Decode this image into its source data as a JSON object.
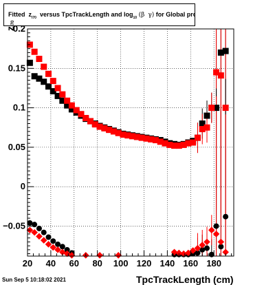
{
  "title": {
    "prefix": "Fitted",
    "var": "z",
    "var_sub": "I70",
    "middle": "versus TpcTrackLength and log",
    "log_sub": "10",
    "paren_open": "(",
    "beta": "β",
    "gamma": "γ",
    "paren_close": ")",
    "suffix": "for Global proton"
  },
  "footer": "Sun Sep  5 10:18:02 2021",
  "chart_data": {
    "type": "scatter",
    "xlabel": "TpcTrackLength (cm)",
    "ylabel": "z",
    "ylabel_sub": "I70",
    "xlim": [
      20,
      197
    ],
    "ylim": [
      -0.088,
      0.2
    ],
    "xticks": [
      20,
      40,
      60,
      80,
      100,
      120,
      140,
      160,
      180
    ],
    "yticks": [
      -0.05,
      0,
      0.05,
      0.1,
      0.15,
      0.2
    ],
    "ytick_labels": [
      "−0.05",
      "0",
      "0.05",
      "0.1",
      "0.15",
      "0.2"
    ],
    "grid": true,
    "colors": {
      "black": "#000000",
      "red": "#ff0000"
    },
    "series": [
      {
        "color": "black",
        "marker": "square",
        "x": [
          22,
          26,
          30,
          34,
          38,
          42,
          46,
          50,
          54,
          58,
          62,
          66,
          70,
          74,
          78,
          82,
          86,
          90,
          94,
          98,
          102,
          106,
          110,
          114,
          118,
          122,
          126,
          130,
          134,
          138,
          142,
          146,
          150,
          154,
          158,
          162,
          166,
          170,
          174,
          178,
          182,
          186,
          190
        ],
        "y": [
          0.157,
          0.14,
          0.137,
          0.133,
          0.127,
          0.121,
          0.115,
          0.109,
          0.103,
          0.098,
          0.094,
          0.09,
          0.086,
          0.083,
          0.08,
          0.077,
          0.075,
          0.073,
          0.071,
          0.069,
          0.067,
          0.066,
          0.065,
          0.064,
          0.063,
          0.062,
          0.061,
          0.06,
          0.059,
          0.057,
          0.055,
          0.054,
          0.053,
          0.054,
          0.056,
          0.058,
          0.062,
          0.08,
          0.09,
          0.1,
          0.1,
          0.17,
          0.172
        ]
      },
      {
        "color": "red",
        "marker": "square",
        "x": [
          22,
          26,
          30,
          34,
          38,
          42,
          46,
          50,
          54,
          58,
          62,
          66,
          70,
          74,
          78,
          82,
          86,
          90,
          94,
          98,
          102,
          106,
          110,
          114,
          118,
          122,
          126,
          130,
          134,
          138,
          142,
          146,
          150,
          154,
          158,
          162,
          166,
          170,
          174,
          178,
          182,
          186,
          190
        ],
        "y": [
          0.18,
          0.171,
          0.162,
          0.152,
          0.143,
          0.134,
          0.125,
          0.117,
          0.109,
          0.103,
          0.097,
          0.092,
          0.087,
          0.083,
          0.079,
          0.076,
          0.074,
          0.072,
          0.07,
          0.068,
          0.066,
          0.065,
          0.064,
          0.063,
          0.062,
          0.061,
          0.06,
          0.059,
          0.057,
          0.055,
          0.053,
          0.052,
          0.052,
          0.053,
          0.055,
          0.056,
          0.062,
          0.073,
          0.075,
          0.1,
          0.145,
          0.141,
          0.1
        ]
      },
      {
        "color": "black",
        "marker": "circle",
        "x": [
          22,
          26,
          30,
          34,
          38,
          42,
          46,
          50,
          54,
          58,
          146,
          150,
          154,
          158,
          162,
          166,
          170,
          174,
          178,
          182,
          186,
          190
        ],
        "y": [
          -0.046,
          -0.048,
          -0.053,
          -0.058,
          -0.064,
          -0.069,
          -0.073,
          -0.076,
          -0.08,
          -0.084,
          -0.086,
          -0.086,
          -0.086,
          -0.086,
          -0.085,
          -0.084,
          -0.08,
          -0.078,
          -0.086,
          -0.05,
          -0.076,
          -0.038
        ]
      },
      {
        "color": "red",
        "marker": "diamond",
        "x": [
          22,
          26,
          30,
          34,
          38,
          42,
          46,
          50,
          54,
          58,
          70,
          82,
          98,
          146,
          150,
          154,
          158,
          162,
          166,
          170,
          174,
          178,
          182,
          186,
          190
        ],
        "y": [
          -0.055,
          -0.058,
          -0.063,
          -0.068,
          -0.073,
          -0.077,
          -0.08,
          -0.083,
          -0.085,
          -0.087,
          -0.087,
          -0.087,
          -0.087,
          -0.083,
          -0.084,
          -0.085,
          -0.084,
          -0.081,
          -0.078,
          -0.074,
          -0.07,
          -0.055,
          -0.06,
          -0.07,
          -0.083
        ]
      }
    ]
  }
}
